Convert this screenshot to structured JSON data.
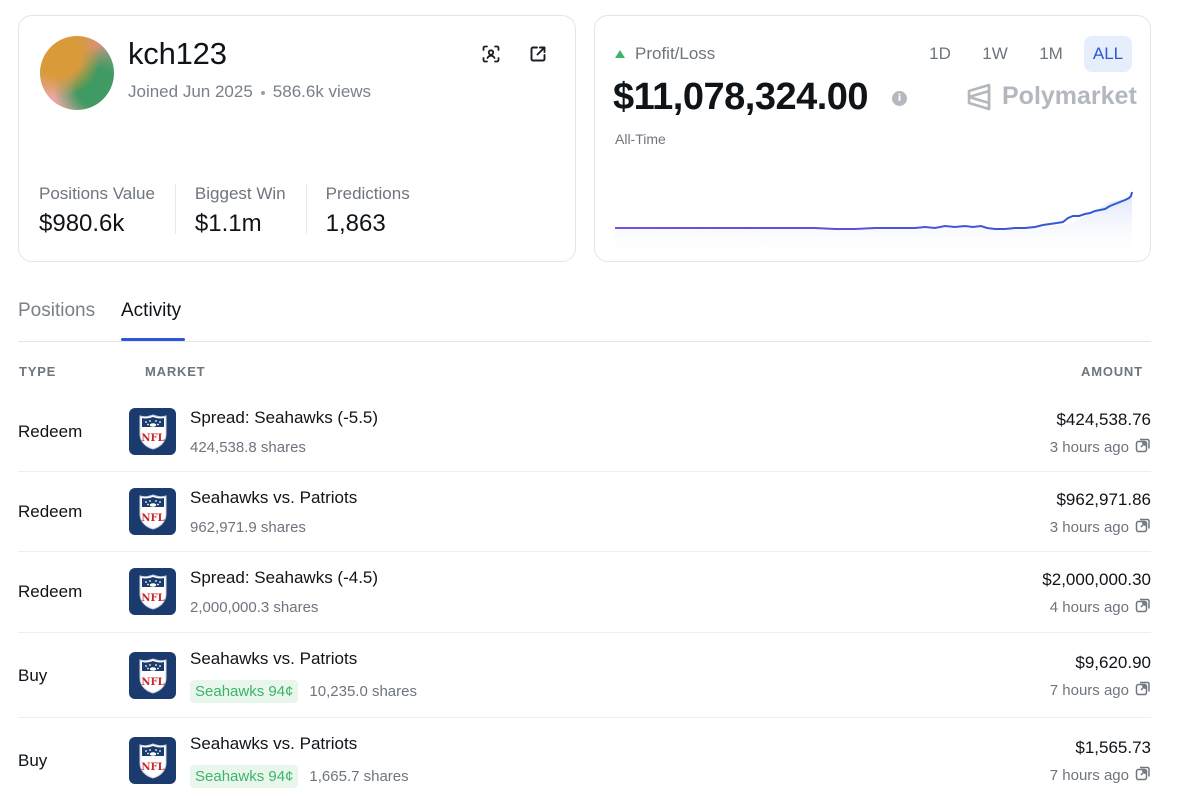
{
  "profile": {
    "username": "kch123",
    "joined": "Joined Jun 2025",
    "views": "586.6k views",
    "stats": [
      {
        "label": "Positions Value",
        "value": "$980.6k"
      },
      {
        "label": "Biggest Win",
        "value": "$1.1m"
      },
      {
        "label": "Predictions",
        "value": "1,863"
      }
    ]
  },
  "pnl": {
    "label": "Profit/Loss",
    "value": "$11,078,324.00",
    "period_label": "All-Time",
    "brand": "Polymarket",
    "ranges": [
      "1D",
      "1W",
      "1M",
      "ALL"
    ],
    "selected_range": "ALL",
    "colors": {
      "line_start": "#7b4fd6",
      "line_end": "#2c58d6",
      "fill": "#e7ecfb",
      "accent": "#2c58d6",
      "up": "#3bb56b"
    }
  },
  "tabs": {
    "positions": "Positions",
    "activity": "Activity",
    "active": "Activity"
  },
  "table": {
    "headers": {
      "type": "TYPE",
      "market": "MARKET",
      "amount": "AMOUNT"
    },
    "rows": [
      {
        "type": "Redeem",
        "title": "Spread: Seahawks (-5.5)",
        "badge": "",
        "shares": "424,538.8 shares",
        "amount": "$424,538.76",
        "time": "3 hours ago"
      },
      {
        "type": "Redeem",
        "title": "Seahawks vs. Patriots",
        "badge": "",
        "shares": "962,971.9 shares",
        "amount": "$962,971.86",
        "time": "3 hours ago"
      },
      {
        "type": "Redeem",
        "title": "Spread: Seahawks (-4.5)",
        "badge": "",
        "shares": "2,000,000.3 shares",
        "amount": "$2,000,000.30",
        "time": "4 hours ago"
      },
      {
        "type": "Buy",
        "title": "Seahawks vs. Patriots",
        "badge": "Seahawks 94¢",
        "shares": "10,235.0 shares",
        "amount": "$9,620.90",
        "time": "7 hours ago"
      },
      {
        "type": "Buy",
        "title": "Seahawks vs. Patriots",
        "badge": "Seahawks 94¢",
        "shares": "1,665.7 shares",
        "amount": "$1,565.73",
        "time": "7 hours ago"
      }
    ]
  },
  "icons": {
    "scan": "scan-icon",
    "share": "external-link-icon",
    "info": "info-icon",
    "market_logo": "nfl-logo-icon",
    "external": "external-link-icon"
  }
}
